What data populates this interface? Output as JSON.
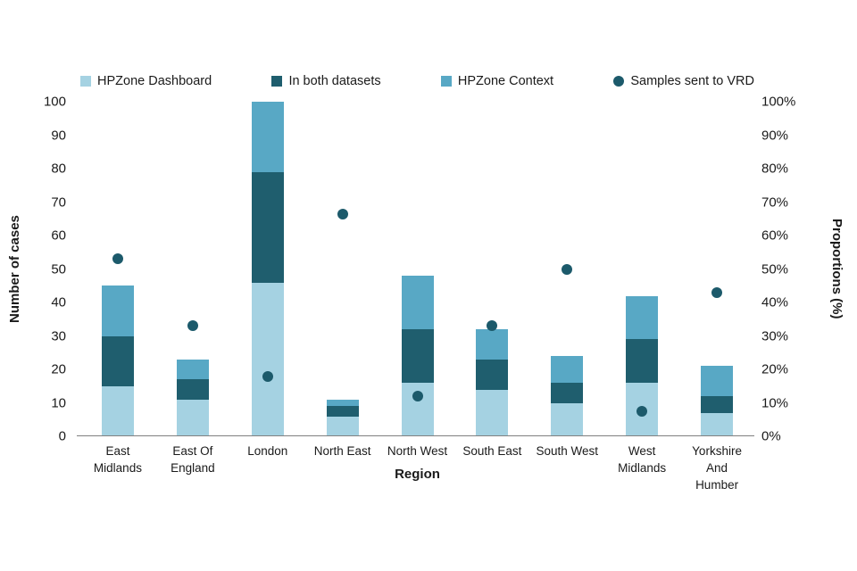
{
  "chart_data": {
    "type": "bar",
    "subtype": "stacked-bars-with-points",
    "title": "",
    "xlabel": "Region",
    "ylabel_left": "Number of cases",
    "ylabel_right": "Proportions (%)",
    "ylim_left": [
      0,
      100
    ],
    "ylim_right": [
      0,
      100
    ],
    "grid": false,
    "legend_position": "top",
    "categories": [
      "East Midlands",
      "East Of England",
      "London",
      "North East",
      "North West",
      "South East",
      "South West",
      "West Midlands",
      "Yorkshire And Humber"
    ],
    "x_tick_labels": [
      "East\nMidlands",
      "East Of\nEngland",
      "London",
      "North East",
      "North West",
      "South East",
      "South West",
      "West\nMidlands",
      "Yorkshire\nAnd\nHumber"
    ],
    "yticks_left": [
      0,
      10,
      20,
      30,
      40,
      50,
      60,
      70,
      80,
      90,
      100
    ],
    "yticks_right_labels": [
      "0%",
      "10%",
      "20%",
      "30%",
      "40%",
      "50%",
      "60%",
      "70%",
      "80%",
      "90%",
      "100%"
    ],
    "series": [
      {
        "name": "HPZone Dashboard",
        "render": "bar-segment",
        "marker": "square",
        "axis": "left",
        "color": "#a5d2e2",
        "values": [
          15,
          11,
          46,
          6,
          16,
          14,
          10,
          16,
          7
        ]
      },
      {
        "name": "In both datasets",
        "render": "bar-segment",
        "marker": "square",
        "axis": "left",
        "color": "#1f5e6e",
        "values": [
          15,
          6,
          33,
          3,
          16,
          9,
          6,
          13,
          5
        ]
      },
      {
        "name": "HPZone Context",
        "render": "bar-segment",
        "marker": "square",
        "axis": "left",
        "color": "#58a8c5",
        "values": [
          15,
          6,
          21,
          2,
          16,
          9,
          8,
          13,
          9
        ]
      },
      {
        "name": "Samples sent to VRD",
        "render": "point",
        "marker": "circle",
        "axis": "right",
        "color": "#1c5a6b",
        "values": [
          53,
          33,
          18,
          66.5,
          12,
          33,
          50,
          7.5,
          43
        ]
      }
    ],
    "bar_totals": [
      45,
      23,
      100,
      11,
      48,
      32,
      24,
      42,
      21
    ]
  },
  "colors": {
    "background": "#ffffff",
    "text": "#1a1a1a",
    "axis_line": "#808080"
  }
}
